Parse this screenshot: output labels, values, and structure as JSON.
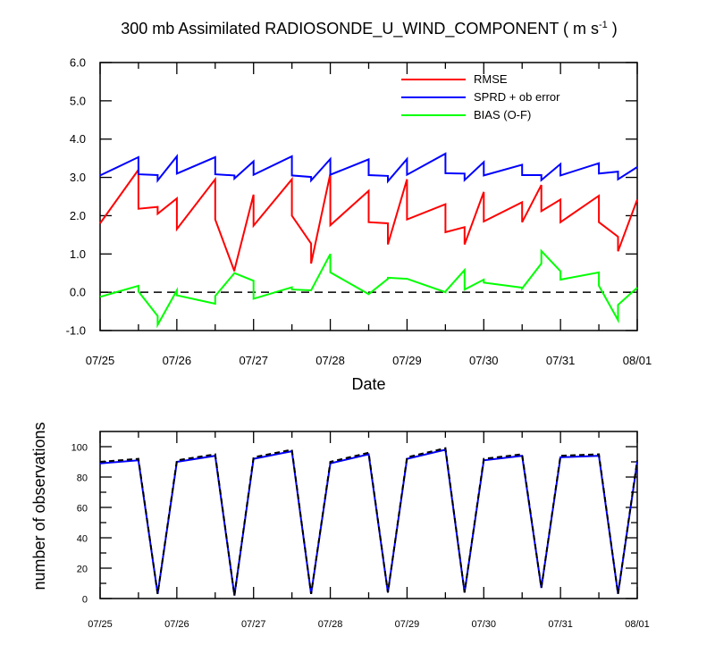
{
  "title": {
    "prefix": "300 mb Assimilated RADIOSONDE_U_WIND_COMPONENT ( m s",
    "superscript": "-1",
    "suffix": " )"
  },
  "chart_data": [
    {
      "type": "line",
      "xlabel": "Date",
      "ylabel": "",
      "xlim": [
        0,
        7
      ],
      "ylim": [
        -1,
        6
      ],
      "x_tick_labels": [
        "07/25",
        "07/26",
        "07/27",
        "07/28",
        "07/29",
        "07/30",
        "07/31",
        "08/01"
      ],
      "y_ticks": [
        "-1.0",
        "0.0",
        "1.0",
        "2.0",
        "3.0",
        "4.0",
        "5.0",
        "6.0"
      ],
      "legend_position": "top-right",
      "zero_line": true,
      "series": [
        {
          "name": "RMSE",
          "color": "#ff0000",
          "x": [
            0,
            0.5,
            0.5,
            0.75,
            0.75,
            1.0,
            1.0,
            1.5,
            1.5,
            1.75,
            1.75,
            2.0,
            2.0,
            2.5,
            2.5,
            2.75,
            2.75,
            3.0,
            3.0,
            3.5,
            3.5,
            3.75,
            3.75,
            4.0,
            4.0,
            4.5,
            4.5,
            4.75,
            4.75,
            5.0,
            5.0,
            5.5,
            5.5,
            5.75,
            5.75,
            6.0,
            6.0,
            6.5,
            6.5,
            6.75,
            6.75,
            7.0
          ],
          "y": [
            1.8,
            3.2,
            2.18,
            2.23,
            2.05,
            2.45,
            1.65,
            2.95,
            1.9,
            0.55,
            0.58,
            2.55,
            1.74,
            2.95,
            2.0,
            1.27,
            0.75,
            3.1,
            1.75,
            2.65,
            1.83,
            1.8,
            1.25,
            2.95,
            1.9,
            2.3,
            1.57,
            1.7,
            1.25,
            2.62,
            1.85,
            2.35,
            1.83,
            2.8,
            2.12,
            2.42,
            1.83,
            2.52,
            1.83,
            1.45,
            1.07,
            2.42
          ]
        },
        {
          "name": "SPRD + ob error",
          "color": "#0000ff",
          "x": [
            0,
            0.5,
            0.5,
            0.75,
            0.75,
            1.0,
            1.0,
            1.5,
            1.5,
            1.75,
            1.75,
            2.0,
            2.0,
            2.5,
            2.5,
            2.75,
            2.75,
            3.0,
            3.0,
            3.5,
            3.5,
            3.75,
            3.75,
            4.0,
            4.0,
            4.5,
            4.5,
            4.75,
            4.75,
            5.0,
            5.0,
            5.5,
            5.5,
            5.75,
            5.75,
            6.0,
            6.0,
            6.5,
            6.5,
            6.75,
            6.75,
            7.0
          ],
          "y": [
            3.05,
            3.53,
            3.08,
            3.06,
            2.92,
            3.55,
            3.1,
            3.53,
            3.08,
            3.05,
            2.97,
            3.42,
            3.07,
            3.55,
            3.05,
            3.01,
            2.92,
            3.48,
            3.07,
            3.47,
            3.06,
            3.04,
            2.9,
            3.48,
            3.07,
            3.62,
            3.11,
            3.1,
            2.93,
            3.4,
            3.05,
            3.33,
            3.06,
            3.06,
            2.93,
            3.35,
            3.05,
            3.37,
            3.1,
            3.15,
            2.95,
            3.27
          ]
        },
        {
          "name": "BIAS (O-F)",
          "color": "#00ff00",
          "x": [
            0,
            0.5,
            0.5,
            0.75,
            0.75,
            1.0,
            1.0,
            1.5,
            1.5,
            1.75,
            1.75,
            2.0,
            2.0,
            2.5,
            2.5,
            2.75,
            2.75,
            3.0,
            3.0,
            3.5,
            3.5,
            3.75,
            3.75,
            4.0,
            4.0,
            4.5,
            4.5,
            4.75,
            4.75,
            5.0,
            5.0,
            5.5,
            5.5,
            5.75,
            5.75,
            6.0,
            6.0,
            6.5,
            6.5,
            6.75,
            6.75,
            7.0
          ],
          "y": [
            -0.12,
            0.17,
            0.02,
            -0.62,
            -0.85,
            0.05,
            -0.08,
            -0.3,
            -0.1,
            0.5,
            0.5,
            0.3,
            -0.17,
            0.13,
            0.07,
            0.05,
            0.05,
            1.0,
            0.52,
            -0.05,
            -0.05,
            0.35,
            0.38,
            0.35,
            0.35,
            0.0,
            0.02,
            0.58,
            0.07,
            0.33,
            0.25,
            0.12,
            0.1,
            0.75,
            1.08,
            0.55,
            0.33,
            0.52,
            0.17,
            -0.73,
            -0.33,
            0.12
          ]
        }
      ]
    },
    {
      "type": "line",
      "xlabel": "",
      "ylabel": "number of observations",
      "xlim": [
        0,
        7
      ],
      "ylim": [
        0,
        110
      ],
      "x_tick_labels": [
        "07/25",
        "07/26",
        "07/27",
        "07/28",
        "07/29",
        "07/30",
        "07/31",
        "08/01"
      ],
      "y_ticks": [
        "0",
        "20",
        "40",
        "60",
        "80",
        "100"
      ],
      "series": [
        {
          "color": "#0000ff",
          "style": "solid",
          "x": [
            0,
            0.5,
            0.75,
            1.0,
            1.5,
            1.75,
            2.0,
            2.5,
            2.75,
            3.0,
            3.5,
            3.75,
            4.0,
            4.5,
            4.75,
            5.0,
            5.5,
            5.75,
            6.0,
            6.5,
            6.75,
            7.0
          ],
          "y": [
            89,
            91,
            3,
            90,
            94,
            2,
            92,
            97,
            3,
            89,
            95,
            4,
            92,
            98,
            4,
            91,
            94,
            7,
            93,
            94,
            3,
            90
          ]
        },
        {
          "color": "#000000",
          "style": "dashed",
          "x": [
            0,
            0.5,
            0.75,
            1.0,
            1.5,
            1.75,
            2.0,
            2.5,
            2.75,
            3.0,
            3.5,
            3.75,
            4.0,
            4.5,
            4.75,
            5.0,
            5.5,
            5.75,
            6.0,
            6.5,
            6.75,
            7.0
          ],
          "y": [
            90,
            92,
            3,
            91,
            95,
            2,
            93,
            98,
            3,
            90,
            96,
            4,
            93,
            99,
            4,
            92,
            95,
            7,
            94,
            95,
            3,
            91
          ]
        }
      ]
    }
  ]
}
